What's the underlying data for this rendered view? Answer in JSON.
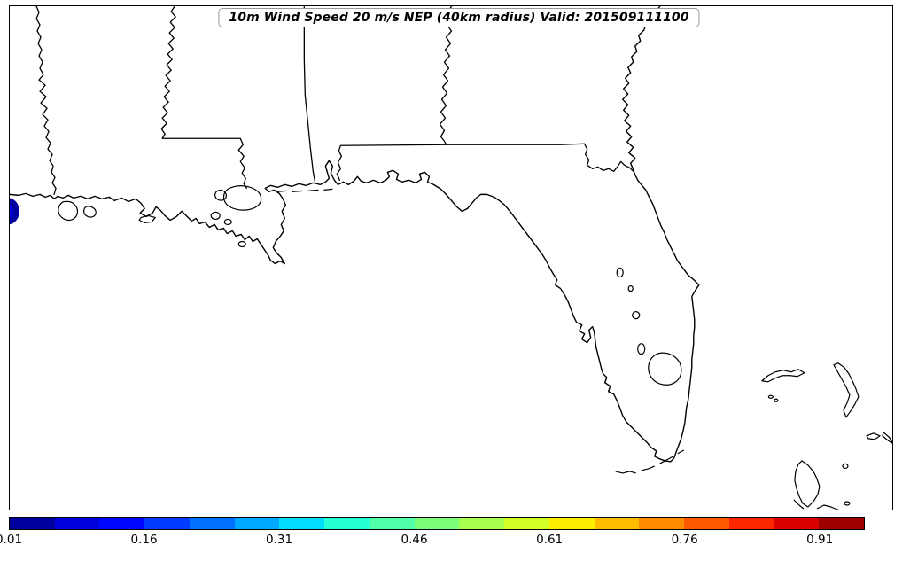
{
  "figure": {
    "title": "10m Wind Speed 20 m/s NEP (40km radius) Valid: 201509111100",
    "plot_type": "neighborhood ensemble probability map",
    "region": "Southeastern United States, northern Gulf of Mexico, Florida and northern Bahamas"
  },
  "colorbar": {
    "orientation": "horizontal",
    "min": 0.01,
    "max": 0.96,
    "segment_step": 0.05,
    "tick_labels": [
      "0.01",
      "0.16",
      "0.31",
      "0.46",
      "0.61",
      "0.76",
      "0.91"
    ],
    "tick_values": [
      0.01,
      0.16,
      0.31,
      0.46,
      0.61,
      0.76,
      0.91
    ],
    "segment_colors": [
      "#00009E",
      "#0000DB",
      "#0007FF",
      "#003CFF",
      "#0072FF",
      "#00A8FF",
      "#00DDFD",
      "#25FFD2",
      "#50FFA7",
      "#7BFF7B",
      "#A7FF50",
      "#D2FF25",
      "#FDEE00",
      "#FFBC00",
      "#FF8B00",
      "#FF5900",
      "#FF2700",
      "#DB0000",
      "#9E0000"
    ]
  },
  "map": {
    "features": [
      "Gulf of Mexico coastline",
      "Atlantic coastline",
      "Louisiana",
      "Mississippi",
      "Alabama",
      "Georgia",
      "Florida",
      "Mississippi River delta",
      "Lake Pontchartrain",
      "Lake Okeechobee",
      "Mobile Bay",
      "Tampa Bay",
      "Florida Keys",
      "Bahamas islands"
    ],
    "line_color": "#000000",
    "background_color": "#ffffff"
  },
  "chart_data": {
    "type": "heatmap",
    "title": "10m Wind Speed 20 m/s NEP (40km radius) Valid: 201509111100",
    "valid_stamp": "201509111100",
    "colorbar_range": [
      0.01,
      0.96
    ],
    "colorbar_ticks": [
      0.01,
      0.16,
      0.31,
      0.46,
      0.61,
      0.76,
      0.91
    ],
    "legend_position": "bottom",
    "data_regions": [
      {
        "location": "left map edge on the Gulf coast (small closed contour)",
        "outer_bin": "0.01-0.06",
        "inner_bin": "0.06-0.11",
        "colors": [
          "#00009E",
          "#0000DB"
        ]
      }
    ]
  }
}
